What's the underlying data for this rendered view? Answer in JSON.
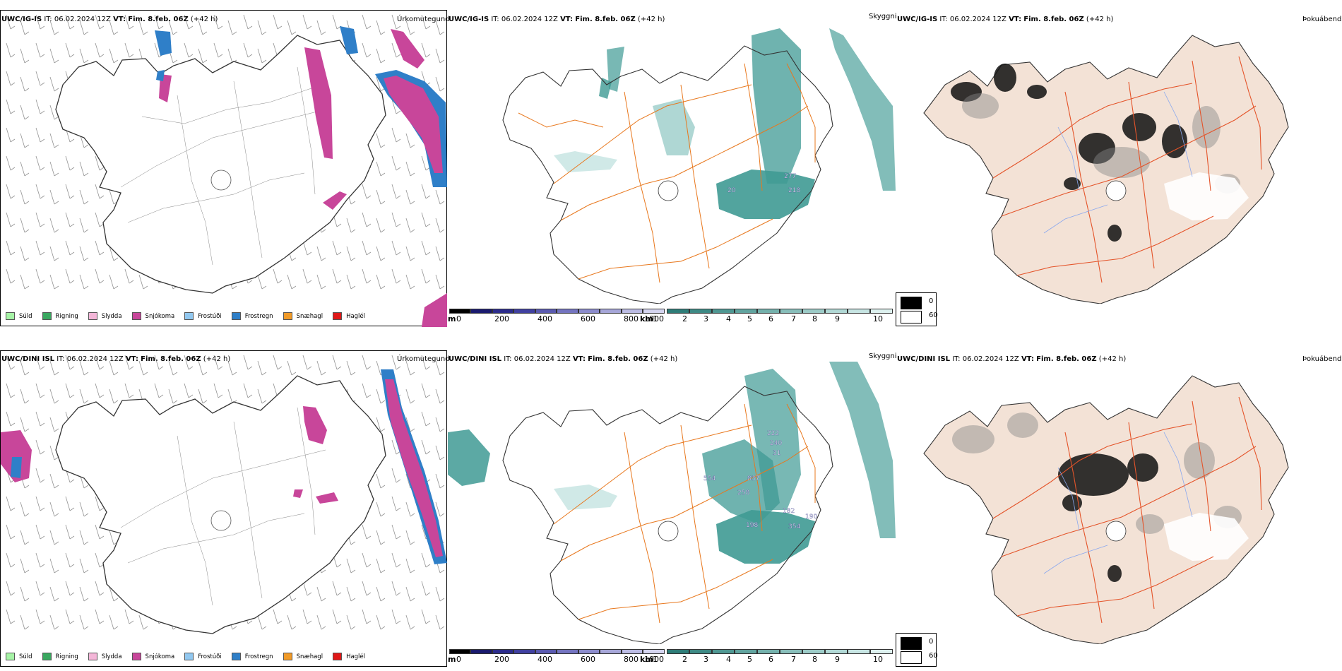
{
  "rows": [
    {
      "model": "UWC/IG-IS",
      "it_label": "IT:",
      "it_value": "06.02.2024 12Z",
      "vt_label": "VT:",
      "vt_value": "Fim. 8.feb. 06Z",
      "lead": "(+42 h)"
    },
    {
      "model": "UWC/DINI ISL",
      "it_label": "IT:",
      "it_value": "06.02.2024 12Z",
      "vt_label": "VT:",
      "vt_value": "Fim. 8.feb. 06Z",
      "lead": "(+42 h)"
    }
  ],
  "panels": {
    "precip_type": "Úrkomutegund",
    "visibility": "Skyggni",
    "fog": "Þokuábendi"
  },
  "precip_legend": [
    {
      "label": "Súld",
      "color": "#a6f3a6"
    },
    {
      "label": "Rigning",
      "color": "#3aa860"
    },
    {
      "label": "Slydda",
      "color": "#f4b6d8"
    },
    {
      "label": "Snjókoma",
      "color": "#c8469a"
    },
    {
      "label": "Frostúði",
      "color": "#92c8f0"
    },
    {
      "label": "Frostregn",
      "color": "#2f7fc8"
    },
    {
      "label": "Snæhagl",
      "color": "#f09a28"
    },
    {
      "label": "Haglél",
      "color": "#e01818"
    }
  ],
  "visibility_scale_m": {
    "unit": "m",
    "ticks": [
      "0",
      "200",
      "400",
      "600",
      "800",
      "1000"
    ],
    "colors": [
      "#000000",
      "#1a1a6e",
      "#2c2c8c",
      "#4040a0",
      "#5a5ab0",
      "#7474c0",
      "#8c8ccc",
      "#a6a6d8",
      "#bcbce4",
      "#d4d4ef"
    ]
  },
  "visibility_scale_km": {
    "unit": "km",
    "ticks": [
      "1",
      "2",
      "3",
      "4",
      "5",
      "6",
      "7",
      "8",
      "9",
      "10"
    ],
    "colors": [
      "#2e7d78",
      "#3e8a85",
      "#4f9792",
      "#61a49f",
      "#74b1ac",
      "#88beba",
      "#9ccbc7",
      "#b1d8d5",
      "#c7e5e3",
      "#ddf1ef"
    ]
  },
  "fog_legend": [
    {
      "label": "0",
      "color": "#000000"
    },
    {
      "label": "60",
      "color": "#ffffff"
    }
  ],
  "visibility_labels": [
    [
      "20",
      "277",
      "218"
    ],
    [
      "222",
      "240",
      "31",
      "554",
      "837",
      "258",
      "182",
      "190",
      "198",
      "354"
    ]
  ],
  "colors": {
    "snow": "#c8469a",
    "freezing_rain": "#2f7fc8",
    "road": "#e8781e",
    "visibility_fill": "#3f9a94",
    "land_fog": "#f3e2d6",
    "road_fog": "#e4542a",
    "river_fog": "#8aa8ee"
  }
}
